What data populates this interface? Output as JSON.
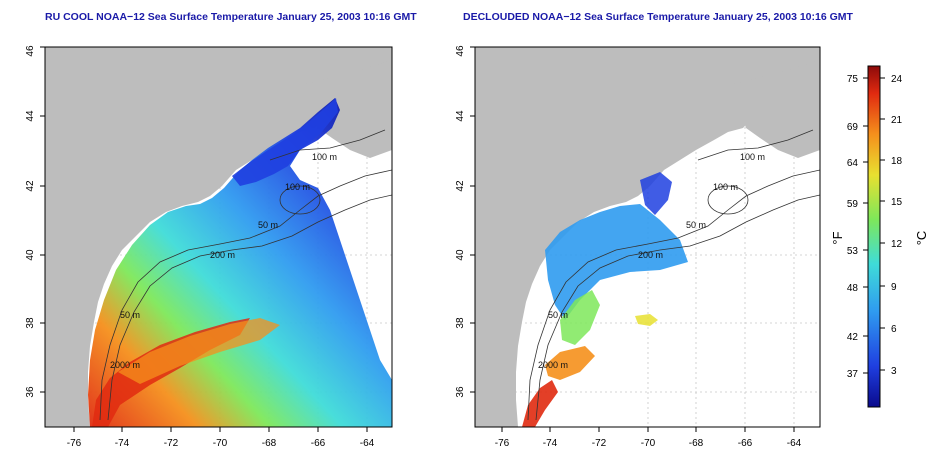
{
  "panels": [
    {
      "title": "RU COOL NOAA−12 Sea Surface Temperature January 25, 2003 10:16 GMT",
      "x_ticks": [
        "-76",
        "-74",
        "-72",
        "-70",
        "-68",
        "-66",
        "-64"
      ],
      "y_ticks": [
        "36",
        "38",
        "40",
        "42",
        "44",
        "46"
      ],
      "contour_labels": [
        "100 m",
        "100 m",
        "50 m",
        "200 m",
        "50 m",
        "2000 m"
      ]
    },
    {
      "title": "DECLOUDED NOAA−12 Sea Surface Temperature January 25, 2003 10:16 GMT",
      "x_ticks": [
        "-76",
        "-74",
        "-72",
        "-70",
        "-68",
        "-66",
        "-64"
      ],
      "y_ticks": [
        "36",
        "38",
        "40",
        "42",
        "44",
        "46"
      ],
      "contour_labels": [
        "100 m",
        "100 m",
        "50 m",
        "200 m",
        "50 m",
        "2000 m"
      ]
    }
  ],
  "colorbar": {
    "label_f": "°F",
    "label_c": "°C",
    "f_ticks": [
      "75",
      "69",
      "64",
      "59",
      "53",
      "48",
      "42",
      "37"
    ],
    "c_ticks": [
      "24",
      "21",
      "18",
      "15",
      "12",
      "9",
      "6",
      "3"
    ]
  },
  "chart_data": {
    "type": "heatmap",
    "xlim": [
      -77,
      -63
    ],
    "ylim": [
      35,
      46
    ],
    "colorscale_range_c": [
      0,
      25
    ],
    "colorscale": [
      "#0a0a8c",
      "#1f3fe0",
      "#2f9bf0",
      "#3fdcd8",
      "#7ee85a",
      "#e8e030",
      "#f5901c",
      "#e02a10",
      "#8c0a0a"
    ],
    "land_color": "#bdbdbd",
    "grid": true
  }
}
